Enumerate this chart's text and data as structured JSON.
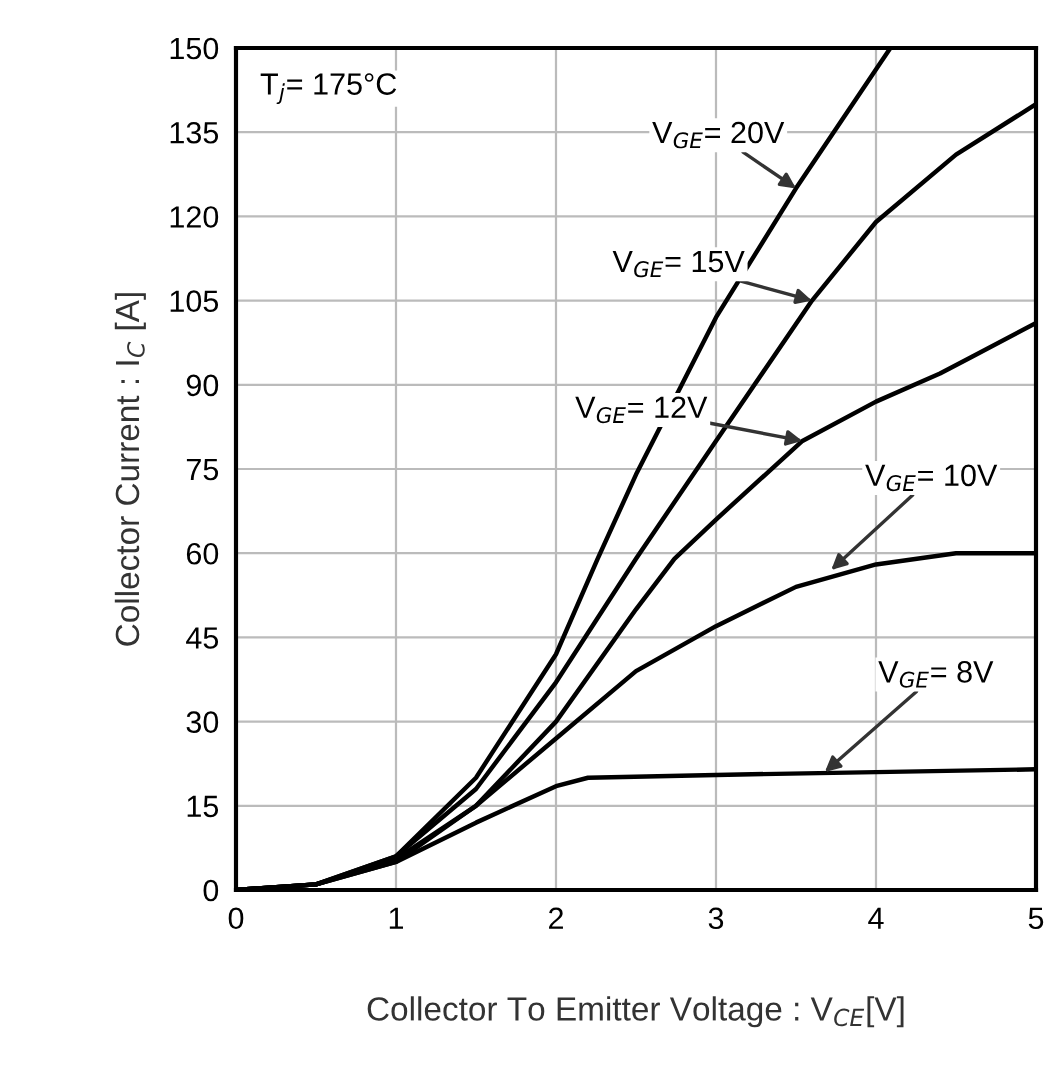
{
  "chart_data": {
    "type": "line",
    "xlabel": "Collector To Emitter Voltage : V$_{CE}$[V]",
    "ylabel": "Collector Current : I$_{C}$ [A]",
    "xlim": [
      0,
      5
    ],
    "xticks": [
      0,
      1,
      2,
      3,
      4,
      5
    ],
    "ylim": [
      0,
      150
    ],
    "yticks": [
      0,
      15,
      30,
      45,
      60,
      75,
      90,
      105,
      120,
      135,
      150
    ],
    "grid": true,
    "marker": "none",
    "line_style": "solid",
    "series": [
      {
        "color": "#000000",
        "x": [
          0,
          0.5,
          1,
          1.5,
          2,
          2.26,
          2.5,
          3,
          3.5,
          4.09
        ],
        "values": [
          0,
          1,
          6,
          20,
          42,
          59,
          74,
          102,
          125,
          150
        ]
      },
      {
        "color": "#000000",
        "x": [
          0,
          0.5,
          1,
          1.5,
          2,
          2.5,
          3,
          3.6,
          4,
          4.5,
          5
        ],
        "values": [
          0,
          1,
          6,
          18,
          37,
          59,
          80,
          105,
          119,
          131,
          140
        ]
      },
      {
        "color": "#000000",
        "x": [
          0,
          0.5,
          1,
          1.5,
          2,
          2.5,
          2.74,
          3,
          3.54,
          4,
          4.4,
          4.6,
          5
        ],
        "values": [
          0,
          1,
          5.5,
          15,
          30,
          50,
          59,
          66,
          80,
          87,
          92,
          95,
          101
        ]
      },
      {
        "color": "#000000",
        "x": [
          0,
          0.5,
          1,
          1.5,
          2,
          2.5,
          3,
          3.5,
          4,
          4.5,
          5
        ],
        "values": [
          0,
          1,
          5,
          15,
          27,
          39,
          47,
          54,
          58,
          60,
          60
        ]
      },
      {
        "color": "#000000",
        "x": [
          0,
          0.5,
          1,
          1.5,
          2,
          2.2,
          3,
          4,
          5
        ],
        "values": [
          0,
          1,
          5,
          12,
          18.5,
          20,
          20.5,
          21,
          21.5
        ]
      }
    ],
    "annotations": [
      "T$_{j}$= 175°C",
      {
        "text": "V$_{GE}$= 20V",
        "x": 3.5,
        "y": 125
      },
      {
        "text": "V$_{GE}$= 15V",
        "x": 3.6,
        "y": 105
      },
      {
        "text": "V$_{GE}$= 12V",
        "x": 3.54,
        "y": 80
      },
      {
        "text": "V$_{GE}$= 10V",
        "x": 3.72,
        "y": 57
      },
      {
        "text": "V$_{GE}$= 8V",
        "x": 3.68,
        "y": 21
      }
    ]
  }
}
